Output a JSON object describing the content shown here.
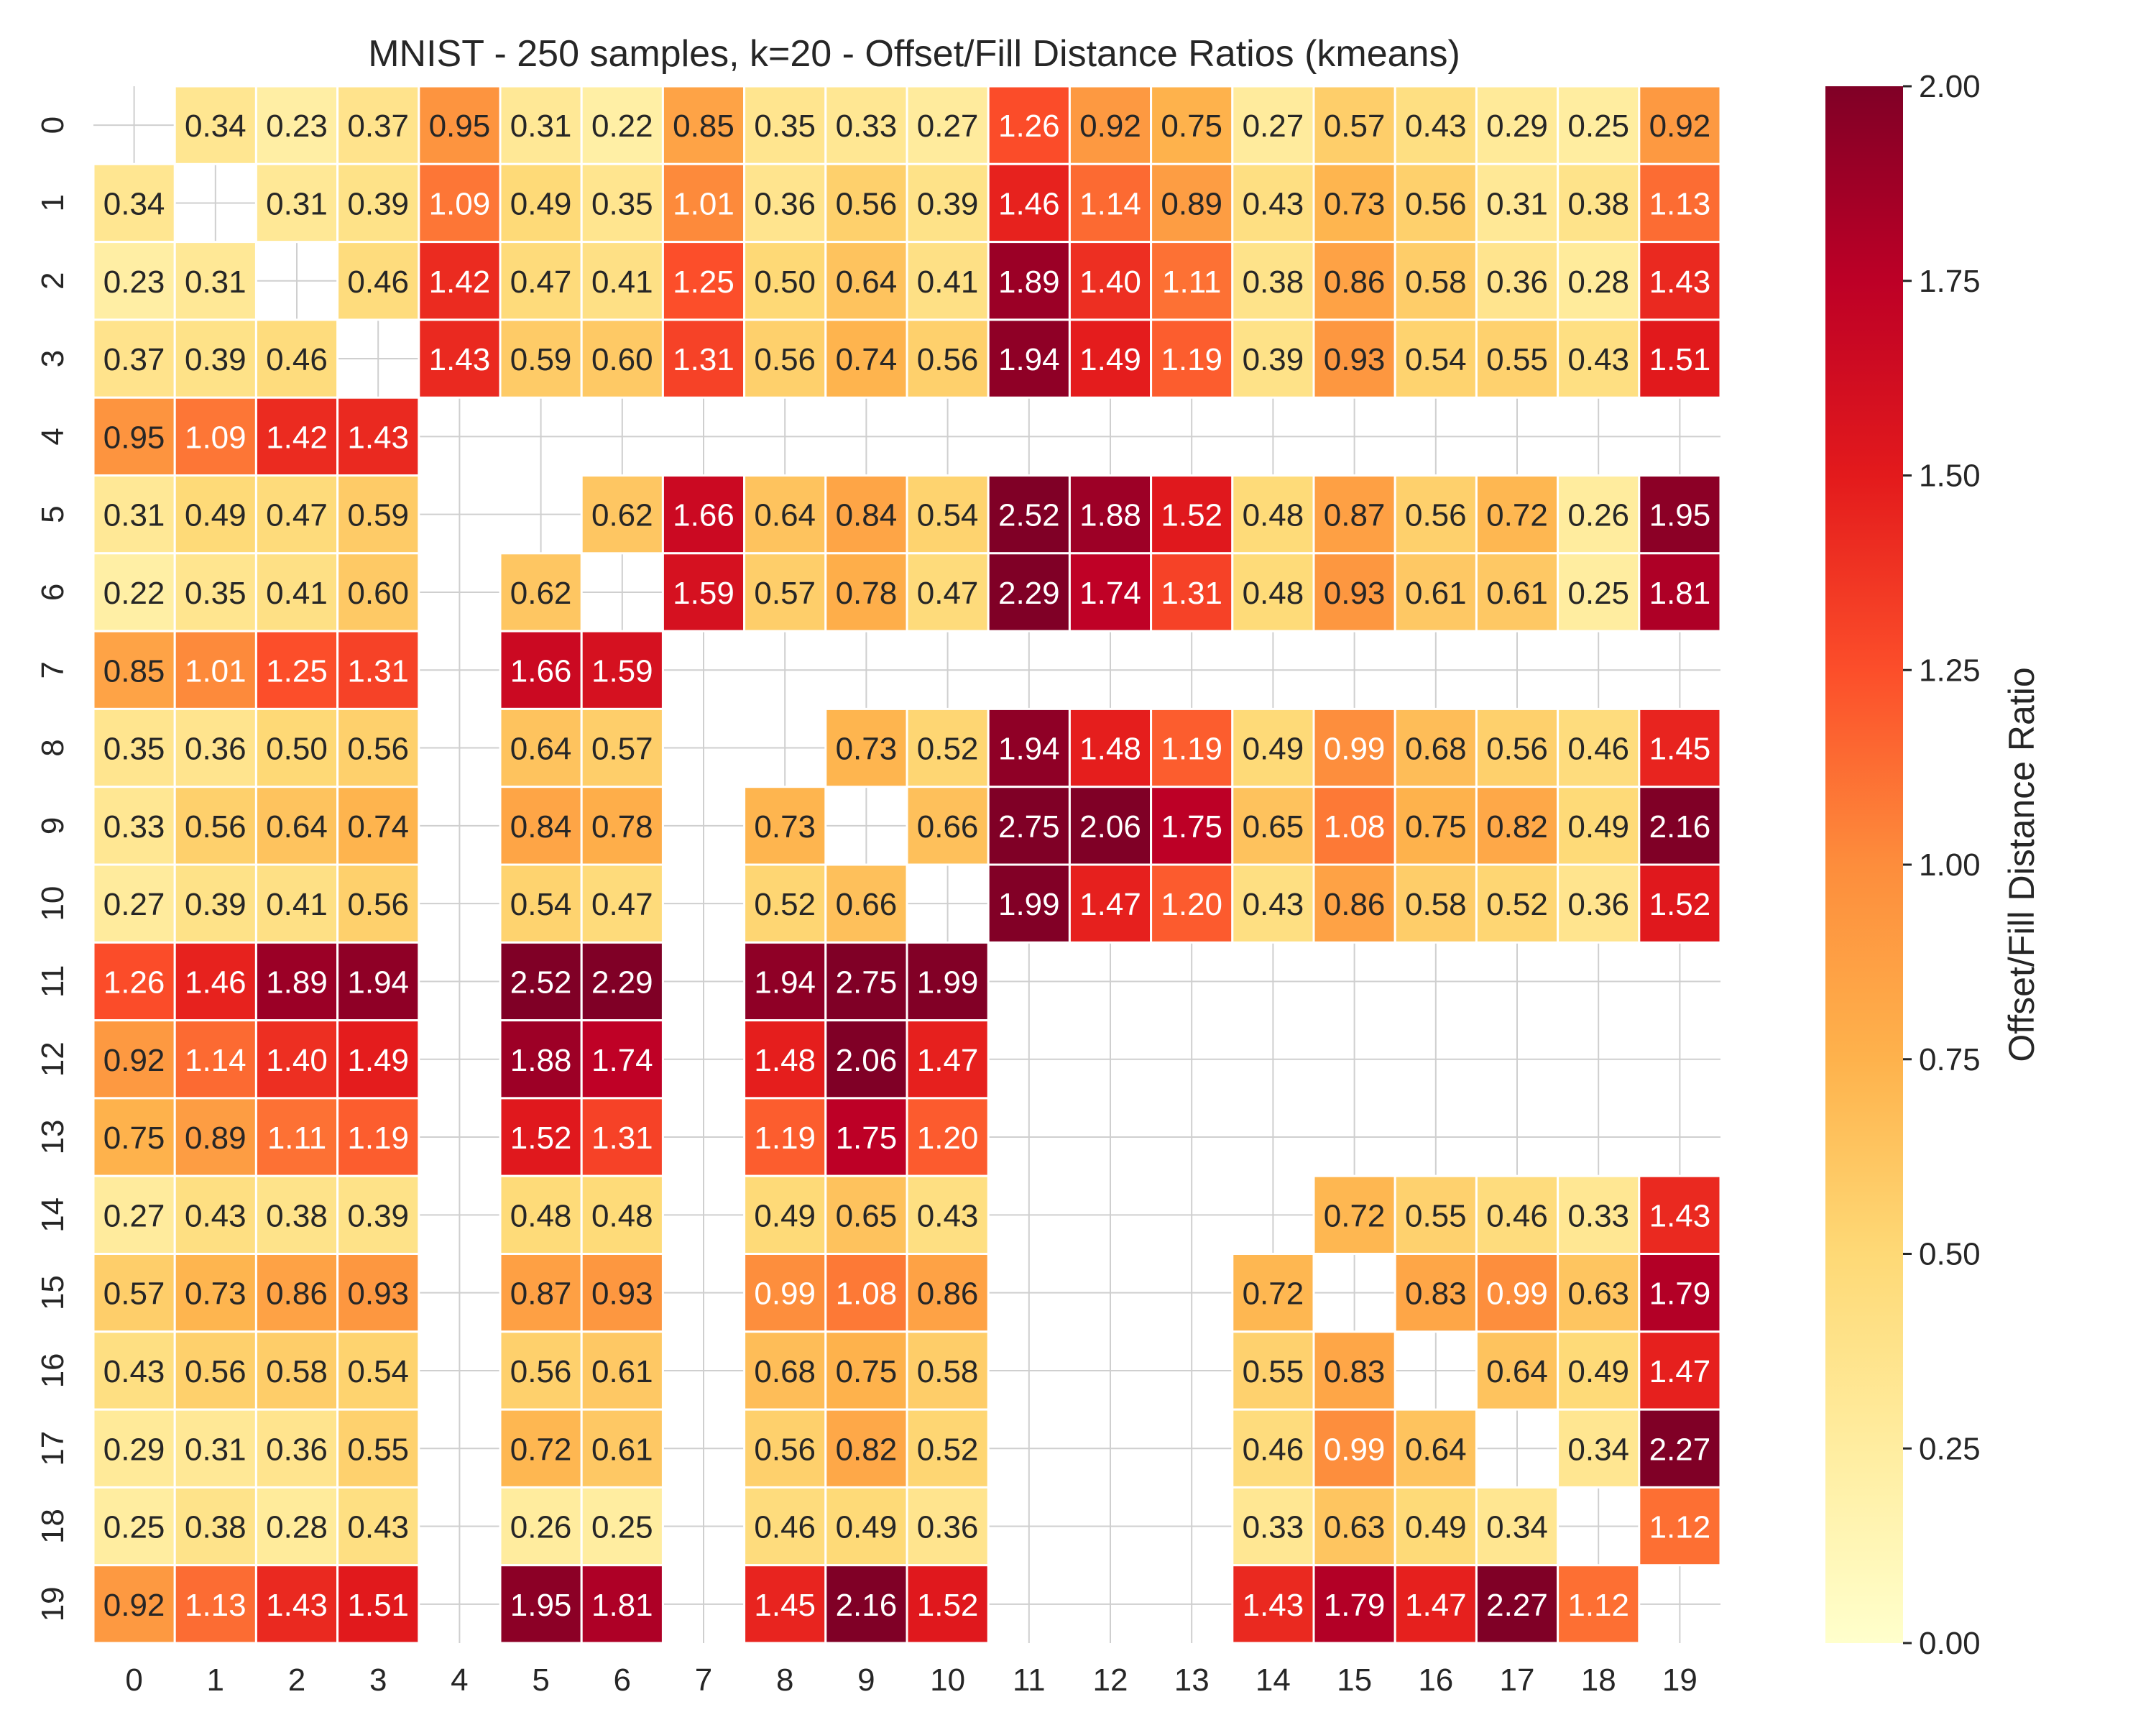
{
  "chart_data": {
    "type": "heatmap",
    "title": "MNIST - 250 samples, k=20 - Offset/Fill Distance Ratios (kmeans)",
    "xlabel": "",
    "ylabel": "",
    "x_ticks": [
      "0",
      "1",
      "2",
      "3",
      "4",
      "5",
      "6",
      "7",
      "8",
      "9",
      "10",
      "11",
      "12",
      "13",
      "14",
      "15",
      "16",
      "17",
      "18",
      "19"
    ],
    "y_ticks": [
      "0",
      "1",
      "2",
      "3",
      "4",
      "5",
      "6",
      "7",
      "8",
      "9",
      "10",
      "11",
      "12",
      "13",
      "14",
      "15",
      "16",
      "17",
      "18",
      "19"
    ],
    "colorbar": {
      "label": "Offset/Fill Distance Ratio",
      "range": [
        0,
        2
      ],
      "ticks": [
        "0.00",
        "0.25",
        "0.50",
        "0.75",
        "1.00",
        "1.25",
        "1.50",
        "1.75",
        "2.00"
      ],
      "colormap": [
        "#ffffcc",
        "#ffeda0",
        "#fed976",
        "#feb24c",
        "#fd8d3c",
        "#fc4e2a",
        "#e31a1c",
        "#bd0026",
        "#800026"
      ]
    },
    "grid": true,
    "cell_text_dark": "#262626",
    "cell_text_light": "#ffffff",
    "values": [
      [
        null,
        0.34,
        0.23,
        0.37,
        0.95,
        0.31,
        0.22,
        0.85,
        0.35,
        0.33,
        0.27,
        1.26,
        0.92,
        0.75,
        0.27,
        0.57,
        0.43,
        0.29,
        0.25,
        0.92
      ],
      [
        0.34,
        null,
        0.31,
        0.39,
        1.09,
        0.49,
        0.35,
        1.01,
        0.36,
        0.56,
        0.39,
        1.46,
        1.14,
        0.89,
        0.43,
        0.73,
        0.56,
        0.31,
        0.38,
        1.13
      ],
      [
        0.23,
        0.31,
        null,
        0.46,
        1.42,
        0.47,
        0.41,
        1.25,
        0.5,
        0.64,
        0.41,
        1.89,
        1.4,
        1.11,
        0.38,
        0.86,
        0.58,
        0.36,
        0.28,
        1.43
      ],
      [
        0.37,
        0.39,
        0.46,
        null,
        1.43,
        0.59,
        0.6,
        1.31,
        0.56,
        0.74,
        0.56,
        1.94,
        1.49,
        1.19,
        0.39,
        0.93,
        0.54,
        0.55,
        0.43,
        1.51
      ],
      [
        0.95,
        1.09,
        1.42,
        1.43,
        null,
        null,
        null,
        null,
        null,
        null,
        null,
        null,
        null,
        null,
        null,
        null,
        null,
        null,
        null,
        null
      ],
      [
        0.31,
        0.49,
        0.47,
        0.59,
        null,
        null,
        0.62,
        1.66,
        0.64,
        0.84,
        0.54,
        2.52,
        1.88,
        1.52,
        0.48,
        0.87,
        0.56,
        0.72,
        0.26,
        1.95
      ],
      [
        0.22,
        0.35,
        0.41,
        0.6,
        null,
        0.62,
        null,
        1.59,
        0.57,
        0.78,
        0.47,
        2.29,
        1.74,
        1.31,
        0.48,
        0.93,
        0.61,
        0.61,
        0.25,
        1.81
      ],
      [
        0.85,
        1.01,
        1.25,
        1.31,
        null,
        1.66,
        1.59,
        null,
        null,
        null,
        null,
        null,
        null,
        null,
        null,
        null,
        null,
        null,
        null,
        null
      ],
      [
        0.35,
        0.36,
        0.5,
        0.56,
        null,
        0.64,
        0.57,
        null,
        null,
        0.73,
        0.52,
        1.94,
        1.48,
        1.19,
        0.49,
        0.99,
        0.68,
        0.56,
        0.46,
        1.45
      ],
      [
        0.33,
        0.56,
        0.64,
        0.74,
        null,
        0.84,
        0.78,
        null,
        0.73,
        null,
        0.66,
        2.75,
        2.06,
        1.75,
        0.65,
        1.08,
        0.75,
        0.82,
        0.49,
        2.16
      ],
      [
        0.27,
        0.39,
        0.41,
        0.56,
        null,
        0.54,
        0.47,
        null,
        0.52,
        0.66,
        null,
        1.99,
        1.47,
        1.2,
        0.43,
        0.86,
        0.58,
        0.52,
        0.36,
        1.52
      ],
      [
        1.26,
        1.46,
        1.89,
        1.94,
        null,
        2.52,
        2.29,
        null,
        1.94,
        2.75,
        1.99,
        null,
        null,
        null,
        null,
        null,
        null,
        null,
        null,
        null
      ],
      [
        0.92,
        1.14,
        1.4,
        1.49,
        null,
        1.88,
        1.74,
        null,
        1.48,
        2.06,
        1.47,
        null,
        null,
        null,
        null,
        null,
        null,
        null,
        null,
        null
      ],
      [
        0.75,
        0.89,
        1.11,
        1.19,
        null,
        1.52,
        1.31,
        null,
        1.19,
        1.75,
        1.2,
        null,
        null,
        null,
        null,
        null,
        null,
        null,
        null,
        null
      ],
      [
        0.27,
        0.43,
        0.38,
        0.39,
        null,
        0.48,
        0.48,
        null,
        0.49,
        0.65,
        0.43,
        null,
        null,
        null,
        null,
        0.72,
        0.55,
        0.46,
        0.33,
        1.43
      ],
      [
        0.57,
        0.73,
        0.86,
        0.93,
        null,
        0.87,
        0.93,
        null,
        0.99,
        1.08,
        0.86,
        null,
        null,
        null,
        0.72,
        null,
        0.83,
        0.99,
        0.63,
        1.79
      ],
      [
        0.43,
        0.56,
        0.58,
        0.54,
        null,
        0.56,
        0.61,
        null,
        0.68,
        0.75,
        0.58,
        null,
        null,
        null,
        0.55,
        0.83,
        null,
        0.64,
        0.49,
        1.47
      ],
      [
        0.29,
        0.31,
        0.36,
        0.55,
        null,
        0.72,
        0.61,
        null,
        0.56,
        0.82,
        0.52,
        null,
        null,
        null,
        0.46,
        0.99,
        0.64,
        null,
        0.34,
        2.27
      ],
      [
        0.25,
        0.38,
        0.28,
        0.43,
        null,
        0.26,
        0.25,
        null,
        0.46,
        0.49,
        0.36,
        null,
        null,
        null,
        0.33,
        0.63,
        0.49,
        0.34,
        null,
        1.12
      ],
      [
        0.92,
        1.13,
        1.43,
        1.51,
        null,
        1.95,
        1.81,
        null,
        1.45,
        2.16,
        1.52,
        null,
        null,
        null,
        1.43,
        1.79,
        1.47,
        2.27,
        1.12,
        null
      ]
    ]
  }
}
